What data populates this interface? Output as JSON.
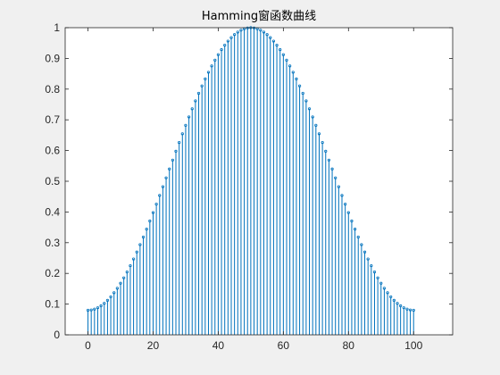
{
  "chart_data": {
    "type": "stem",
    "title": "Hamming窗函数曲线",
    "xlabel": "",
    "ylabel": "",
    "series": [
      {
        "color": "#0072bd",
        "n": [
          0,
          100
        ],
        "formula": "0.54 - 0.46*cos(2*pi*n/100)"
      }
    ],
    "xlim": [
      -7,
      112
    ],
    "ylim": [
      0,
      1
    ],
    "xticks": [
      0,
      20,
      40,
      60,
      80,
      100
    ],
    "yticks": [
      0,
      0.1,
      0.2,
      0.3,
      0.4,
      0.5,
      0.6,
      0.7,
      0.8,
      0.9,
      1
    ],
    "xtick_labels": [
      "0",
      "20",
      "40",
      "60",
      "80",
      "100"
    ],
    "ytick_labels": [
      "0",
      "0.1",
      "0.2",
      "0.3",
      "0.4",
      "0.5",
      "0.6",
      "0.7",
      "0.8",
      "0.9",
      "1"
    ],
    "grid": false,
    "legend": "none"
  }
}
